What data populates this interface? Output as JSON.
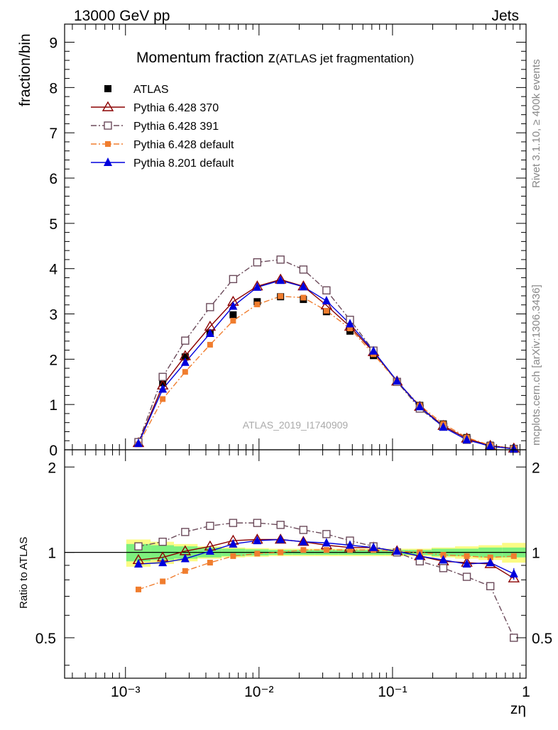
{
  "header": {
    "left": "13000 GeV pp",
    "right": "Jets"
  },
  "side_labels": {
    "rivet": "Rivet 3.1.10, ≥ 400k events",
    "mcplots": "mcplots.cern.ch [arXiv:1306.3436]"
  },
  "colors": {
    "atlas": "#000000",
    "pythia6_370": "#8b0000",
    "pythia6_391": "#6b4a5a",
    "pythia6_default": "#f07d2e",
    "pythia8_default": "#0000dd",
    "band_inner": "#7ef07e",
    "band_outer": "#fbfb84"
  },
  "chart_data": {
    "type": "line",
    "title_main": "Momentum fraction z",
    "title_sub": "(ATLAS jet fragmentation)",
    "analysis_label": "ATLAS_2019_I1740909",
    "xlabel": "zη",
    "ylabel": "fraction/bin",
    "ratio_ylabel": "Ratio to ATLAS",
    "x_scale": "log",
    "xlim": [
      0.00035,
      1.0
    ],
    "ylim": [
      0,
      9.4
    ],
    "ratio_ylim": [
      0.36,
      2.3
    ],
    "ratio_scale": "log",
    "x_tick_labels": [
      "10⁻³",
      "10⁻²",
      "10⁻¹",
      "1"
    ],
    "y_ticks": [
      0,
      1,
      2,
      3,
      4,
      5,
      6,
      7,
      8,
      9
    ],
    "ratio_ticks": [
      0.5,
      1,
      2
    ],
    "legend_position": "top-left",
    "x": [
      0.00125,
      0.0019,
      0.0028,
      0.0043,
      0.0064,
      0.0097,
      0.0145,
      0.0215,
      0.032,
      0.048,
      0.072,
      0.108,
      0.16,
      0.24,
      0.36,
      0.54,
      0.81
    ],
    "series": [
      {
        "name": "ATLAS",
        "marker": "filled-square",
        "values": [
          0.16,
          1.48,
          2.05,
          2.58,
          2.98,
          3.27,
          3.38,
          3.32,
          3.05,
          2.62,
          2.08,
          1.5,
          0.98,
          0.57,
          0.27,
          0.1,
          0.03
        ]
      },
      {
        "name": "Pythia 6.428 370",
        "marker": "open-triangle",
        "style": "solid",
        "values": [
          0.15,
          1.42,
          2.07,
          2.72,
          3.27,
          3.61,
          3.76,
          3.61,
          3.19,
          2.72,
          2.16,
          1.51,
          0.95,
          0.53,
          0.25,
          0.09,
          0.03
        ],
        "ratio": [
          0.94,
          0.96,
          1.01,
          1.05,
          1.1,
          1.11,
          1.11,
          1.09,
          1.06,
          1.04,
          1.04,
          1.01,
          0.97,
          0.93,
          0.92,
          0.91,
          0.81
        ]
      },
      {
        "name": "Pythia 6.428 391",
        "marker": "open-square",
        "style": "dashdot",
        "values": [
          0.17,
          1.61,
          2.41,
          3.15,
          3.77,
          4.14,
          4.2,
          3.98,
          3.52,
          2.87,
          2.19,
          1.5,
          0.91,
          0.51,
          0.22,
          0.08,
          0.02
        ],
        "ratio": [
          1.05,
          1.09,
          1.18,
          1.24,
          1.27,
          1.27,
          1.25,
          1.2,
          1.16,
          1.1,
          1.05,
          1.0,
          0.93,
          0.88,
          0.82,
          0.76,
          0.5
        ]
      },
      {
        "name": "Pythia 6.428 default",
        "marker": "filled-square-small",
        "style": "dashdot",
        "values": [
          0.12,
          1.12,
          1.72,
          2.32,
          2.85,
          3.21,
          3.39,
          3.36,
          3.07,
          2.68,
          2.11,
          1.51,
          0.98,
          0.57,
          0.27,
          0.1,
          0.03
        ],
        "ratio": [
          0.74,
          0.79,
          0.86,
          0.92,
          0.97,
          0.99,
          1.0,
          1.02,
          1.02,
          1.02,
          1.02,
          1.01,
          1.0,
          0.98,
          0.97,
          0.96,
          0.97
        ]
      },
      {
        "name": "Pythia 8.201 default",
        "marker": "filled-triangle",
        "style": "solid",
        "values": [
          0.14,
          1.34,
          1.93,
          2.57,
          3.17,
          3.59,
          3.74,
          3.6,
          3.29,
          2.78,
          2.18,
          1.52,
          0.95,
          0.5,
          0.22,
          0.08,
          0.02
        ],
        "ratio": [
          0.91,
          0.92,
          0.95,
          1.01,
          1.07,
          1.1,
          1.11,
          1.09,
          1.08,
          1.06,
          1.04,
          1.01,
          0.97,
          0.94,
          0.91,
          0.92,
          0.84
        ]
      }
    ],
    "uncertainty_band": {
      "inner": [
        0.07,
        0.06,
        0.05,
        0.04,
        0.03,
        0.025,
        0.02,
        0.02,
        0.02,
        0.02,
        0.02,
        0.02,
        0.02,
        0.03,
        0.03,
        0.04,
        0.04
      ],
      "outer": [
        0.11,
        0.09,
        0.07,
        0.05,
        0.04,
        0.035,
        0.03,
        0.03,
        0.03,
        0.03,
        0.03,
        0.03,
        0.03,
        0.04,
        0.05,
        0.06,
        0.08
      ]
    }
  }
}
